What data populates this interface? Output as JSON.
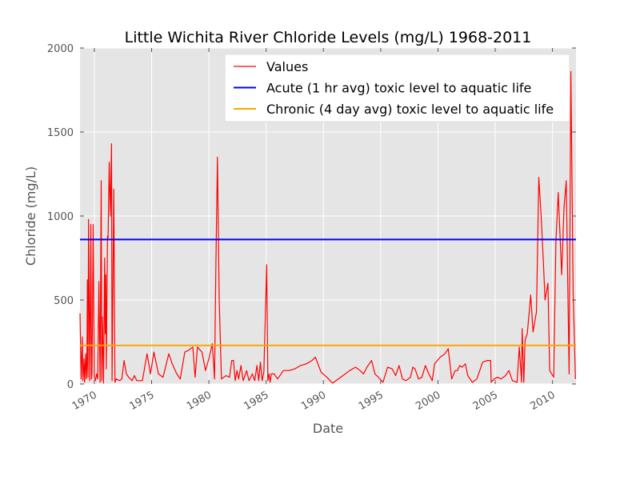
{
  "chart_data": {
    "type": "line",
    "title": "Little Wichita River Chloride Levels (mg/L) 1968-2011",
    "xlabel": "Date",
    "ylabel": "Chloride (mg/L)",
    "xlim": [
      1968.75,
      2012.05
    ],
    "ylim": [
      0,
      2000
    ],
    "grid": true,
    "legend_position": "top-right",
    "xticks": [
      {
        "value": 1970,
        "label": "1970"
      },
      {
        "value": 1975,
        "label": "1975"
      },
      {
        "value": 1980,
        "label": "1980"
      },
      {
        "value": 1985,
        "label": "1985"
      },
      {
        "value": 1990,
        "label": "1990"
      },
      {
        "value": 1995,
        "label": "1995"
      },
      {
        "value": 2000,
        "label": "2000"
      },
      {
        "value": 2005,
        "label": "2005"
      },
      {
        "value": 2010,
        "label": "2010"
      }
    ],
    "yticks": [
      {
        "value": 0,
        "label": "0"
      },
      {
        "value": 500,
        "label": "500"
      },
      {
        "value": 1000,
        "label": "1000"
      },
      {
        "value": 1500,
        "label": "1500"
      },
      {
        "value": 2000,
        "label": "2000"
      }
    ],
    "series": [
      {
        "name": "Values",
        "color": "#ff0000",
        "points": [
          [
            1968.75,
            420
          ],
          [
            1968.85,
            30
          ],
          [
            1968.95,
            280
          ],
          [
            1969.0,
            20
          ],
          [
            1969.1,
            150
          ],
          [
            1969.15,
            10
          ],
          [
            1969.25,
            180
          ],
          [
            1969.3,
            30
          ],
          [
            1969.35,
            100
          ],
          [
            1969.4,
            620
          ],
          [
            1969.45,
            40
          ],
          [
            1969.5,
            980
          ],
          [
            1969.6,
            20
          ],
          [
            1969.7,
            950
          ],
          [
            1969.75,
            30
          ],
          [
            1969.8,
            60
          ],
          [
            1969.9,
            950
          ],
          [
            1970.0,
            40
          ],
          [
            1970.1,
            20
          ],
          [
            1970.2,
            60
          ],
          [
            1970.3,
            30
          ],
          [
            1970.4,
            610
          ],
          [
            1970.5,
            10
          ],
          [
            1970.6,
            1210
          ],
          [
            1970.65,
            20
          ],
          [
            1970.7,
            400
          ],
          [
            1970.8,
            5
          ],
          [
            1970.9,
            750
          ],
          [
            1970.95,
            300
          ],
          [
            1971.0,
            650
          ],
          [
            1971.05,
            90
          ],
          [
            1971.15,
            880
          ],
          [
            1971.2,
            870
          ],
          [
            1971.3,
            1320
          ],
          [
            1971.4,
            1000
          ],
          [
            1971.5,
            1430
          ],
          [
            1971.55,
            20
          ],
          [
            1971.7,
            1160
          ],
          [
            1971.8,
            10
          ],
          [
            1971.9,
            30
          ],
          [
            1972.2,
            20
          ],
          [
            1972.4,
            30
          ],
          [
            1972.6,
            140
          ],
          [
            1972.8,
            60
          ],
          [
            1973.0,
            40
          ],
          [
            1973.3,
            20
          ],
          [
            1973.5,
            50
          ],
          [
            1973.7,
            20
          ],
          [
            1974.2,
            20
          ],
          [
            1974.6,
            180
          ],
          [
            1974.9,
            60
          ],
          [
            1975.2,
            190
          ],
          [
            1975.6,
            60
          ],
          [
            1976.0,
            40
          ],
          [
            1976.5,
            180
          ],
          [
            1976.8,
            120
          ],
          [
            1977.2,
            60
          ],
          [
            1977.5,
            30
          ],
          [
            1977.9,
            190
          ],
          [
            1978.2,
            200
          ],
          [
            1978.6,
            220
          ],
          [
            1978.8,
            40
          ],
          [
            1979.0,
            220
          ],
          [
            1979.4,
            190
          ],
          [
            1979.7,
            80
          ],
          [
            1980.0,
            150
          ],
          [
            1980.3,
            240
          ],
          [
            1980.5,
            30
          ],
          [
            1980.6,
            650
          ],
          [
            1980.75,
            1350
          ],
          [
            1980.9,
            500
          ],
          [
            1981.1,
            30
          ],
          [
            1981.5,
            50
          ],
          [
            1981.8,
            40
          ],
          [
            1982.0,
            140
          ],
          [
            1982.15,
            140
          ],
          [
            1982.3,
            20
          ],
          [
            1982.45,
            80
          ],
          [
            1982.6,
            30
          ],
          [
            1982.8,
            110
          ],
          [
            1983.0,
            20
          ],
          [
            1983.3,
            80
          ],
          [
            1983.5,
            20
          ],
          [
            1983.8,
            60
          ],
          [
            1984.0,
            20
          ],
          [
            1984.2,
            110
          ],
          [
            1984.35,
            20
          ],
          [
            1984.5,
            130
          ],
          [
            1984.65,
            20
          ],
          [
            1984.8,
            70
          ],
          [
            1985.05,
            710
          ],
          [
            1985.15,
            20
          ],
          [
            1985.25,
            60
          ],
          [
            1985.35,
            10
          ],
          [
            1985.45,
            60
          ],
          [
            1985.7,
            60
          ],
          [
            1986.0,
            30
          ],
          [
            1986.5,
            80
          ],
          [
            1987.0,
            80
          ],
          [
            1987.5,
            90
          ],
          [
            1988.0,
            110
          ],
          [
            1988.5,
            120
          ],
          [
            1989.0,
            140
          ],
          [
            1989.3,
            160
          ],
          [
            1989.8,
            70
          ],
          [
            1990.3,
            40
          ],
          [
            1990.8,
            5
          ],
          [
            1991.5,
            40
          ],
          [
            1992.3,
            80
          ],
          [
            1992.8,
            100
          ],
          [
            1993.2,
            80
          ],
          [
            1993.5,
            60
          ],
          [
            1993.8,
            100
          ],
          [
            1994.2,
            140
          ],
          [
            1994.5,
            60
          ],
          [
            1994.8,
            40
          ],
          [
            1995.2,
            10
          ],
          [
            1995.6,
            100
          ],
          [
            1996.0,
            90
          ],
          [
            1996.3,
            50
          ],
          [
            1996.6,
            110
          ],
          [
            1996.9,
            30
          ],
          [
            1997.2,
            20
          ],
          [
            1997.6,
            40
          ],
          [
            1997.8,
            100
          ],
          [
            1998.0,
            90
          ],
          [
            1998.3,
            30
          ],
          [
            1998.6,
            40
          ],
          [
            1998.9,
            110
          ],
          [
            1999.2,
            60
          ],
          [
            1999.5,
            20
          ],
          [
            1999.7,
            120
          ],
          [
            2000.2,
            160
          ],
          [
            2000.6,
            180
          ],
          [
            2000.9,
            210
          ],
          [
            2001.2,
            30
          ],
          [
            2001.5,
            80
          ],
          [
            2001.7,
            80
          ],
          [
            2001.9,
            110
          ],
          [
            2002.1,
            100
          ],
          [
            2002.4,
            120
          ],
          [
            2002.6,
            50
          ],
          [
            2003.0,
            10
          ],
          [
            2003.4,
            30
          ],
          [
            2003.9,
            130
          ],
          [
            2004.3,
            140
          ],
          [
            2004.6,
            140
          ],
          [
            2004.65,
            10
          ],
          [
            2004.9,
            30
          ],
          [
            2005.2,
            40
          ],
          [
            2005.5,
            30
          ],
          [
            2005.9,
            50
          ],
          [
            2006.2,
            80
          ],
          [
            2006.5,
            20
          ],
          [
            2006.9,
            10
          ],
          [
            2007.1,
            220
          ],
          [
            2007.3,
            10
          ],
          [
            2007.35,
            330
          ],
          [
            2007.5,
            10
          ],
          [
            2007.6,
            260
          ],
          [
            2007.8,
            300
          ],
          [
            2008.1,
            530
          ],
          [
            2008.3,
            310
          ],
          [
            2008.6,
            430
          ],
          [
            2008.8,
            1230
          ],
          [
            2009.0,
            1010
          ],
          [
            2009.2,
            730
          ],
          [
            2009.35,
            500
          ],
          [
            2009.5,
            560
          ],
          [
            2009.6,
            600
          ],
          [
            2009.75,
            80
          ],
          [
            2010.1,
            40
          ],
          [
            2010.3,
            850
          ],
          [
            2010.5,
            1140
          ],
          [
            2010.8,
            650
          ],
          [
            2011.0,
            1050
          ],
          [
            2011.2,
            1210
          ],
          [
            2011.45,
            60
          ],
          [
            2011.6,
            1860
          ],
          [
            2011.8,
            550
          ],
          [
            2012.0,
            30
          ]
        ]
      },
      {
        "name": "Acute (1 hr avg) toxic level to aquatic life",
        "color": "#0000ff",
        "constant": 860
      },
      {
        "name": "Chronic (4 day avg) toxic level to aquatic life",
        "color": "#ffa500",
        "constant": 230
      }
    ]
  }
}
